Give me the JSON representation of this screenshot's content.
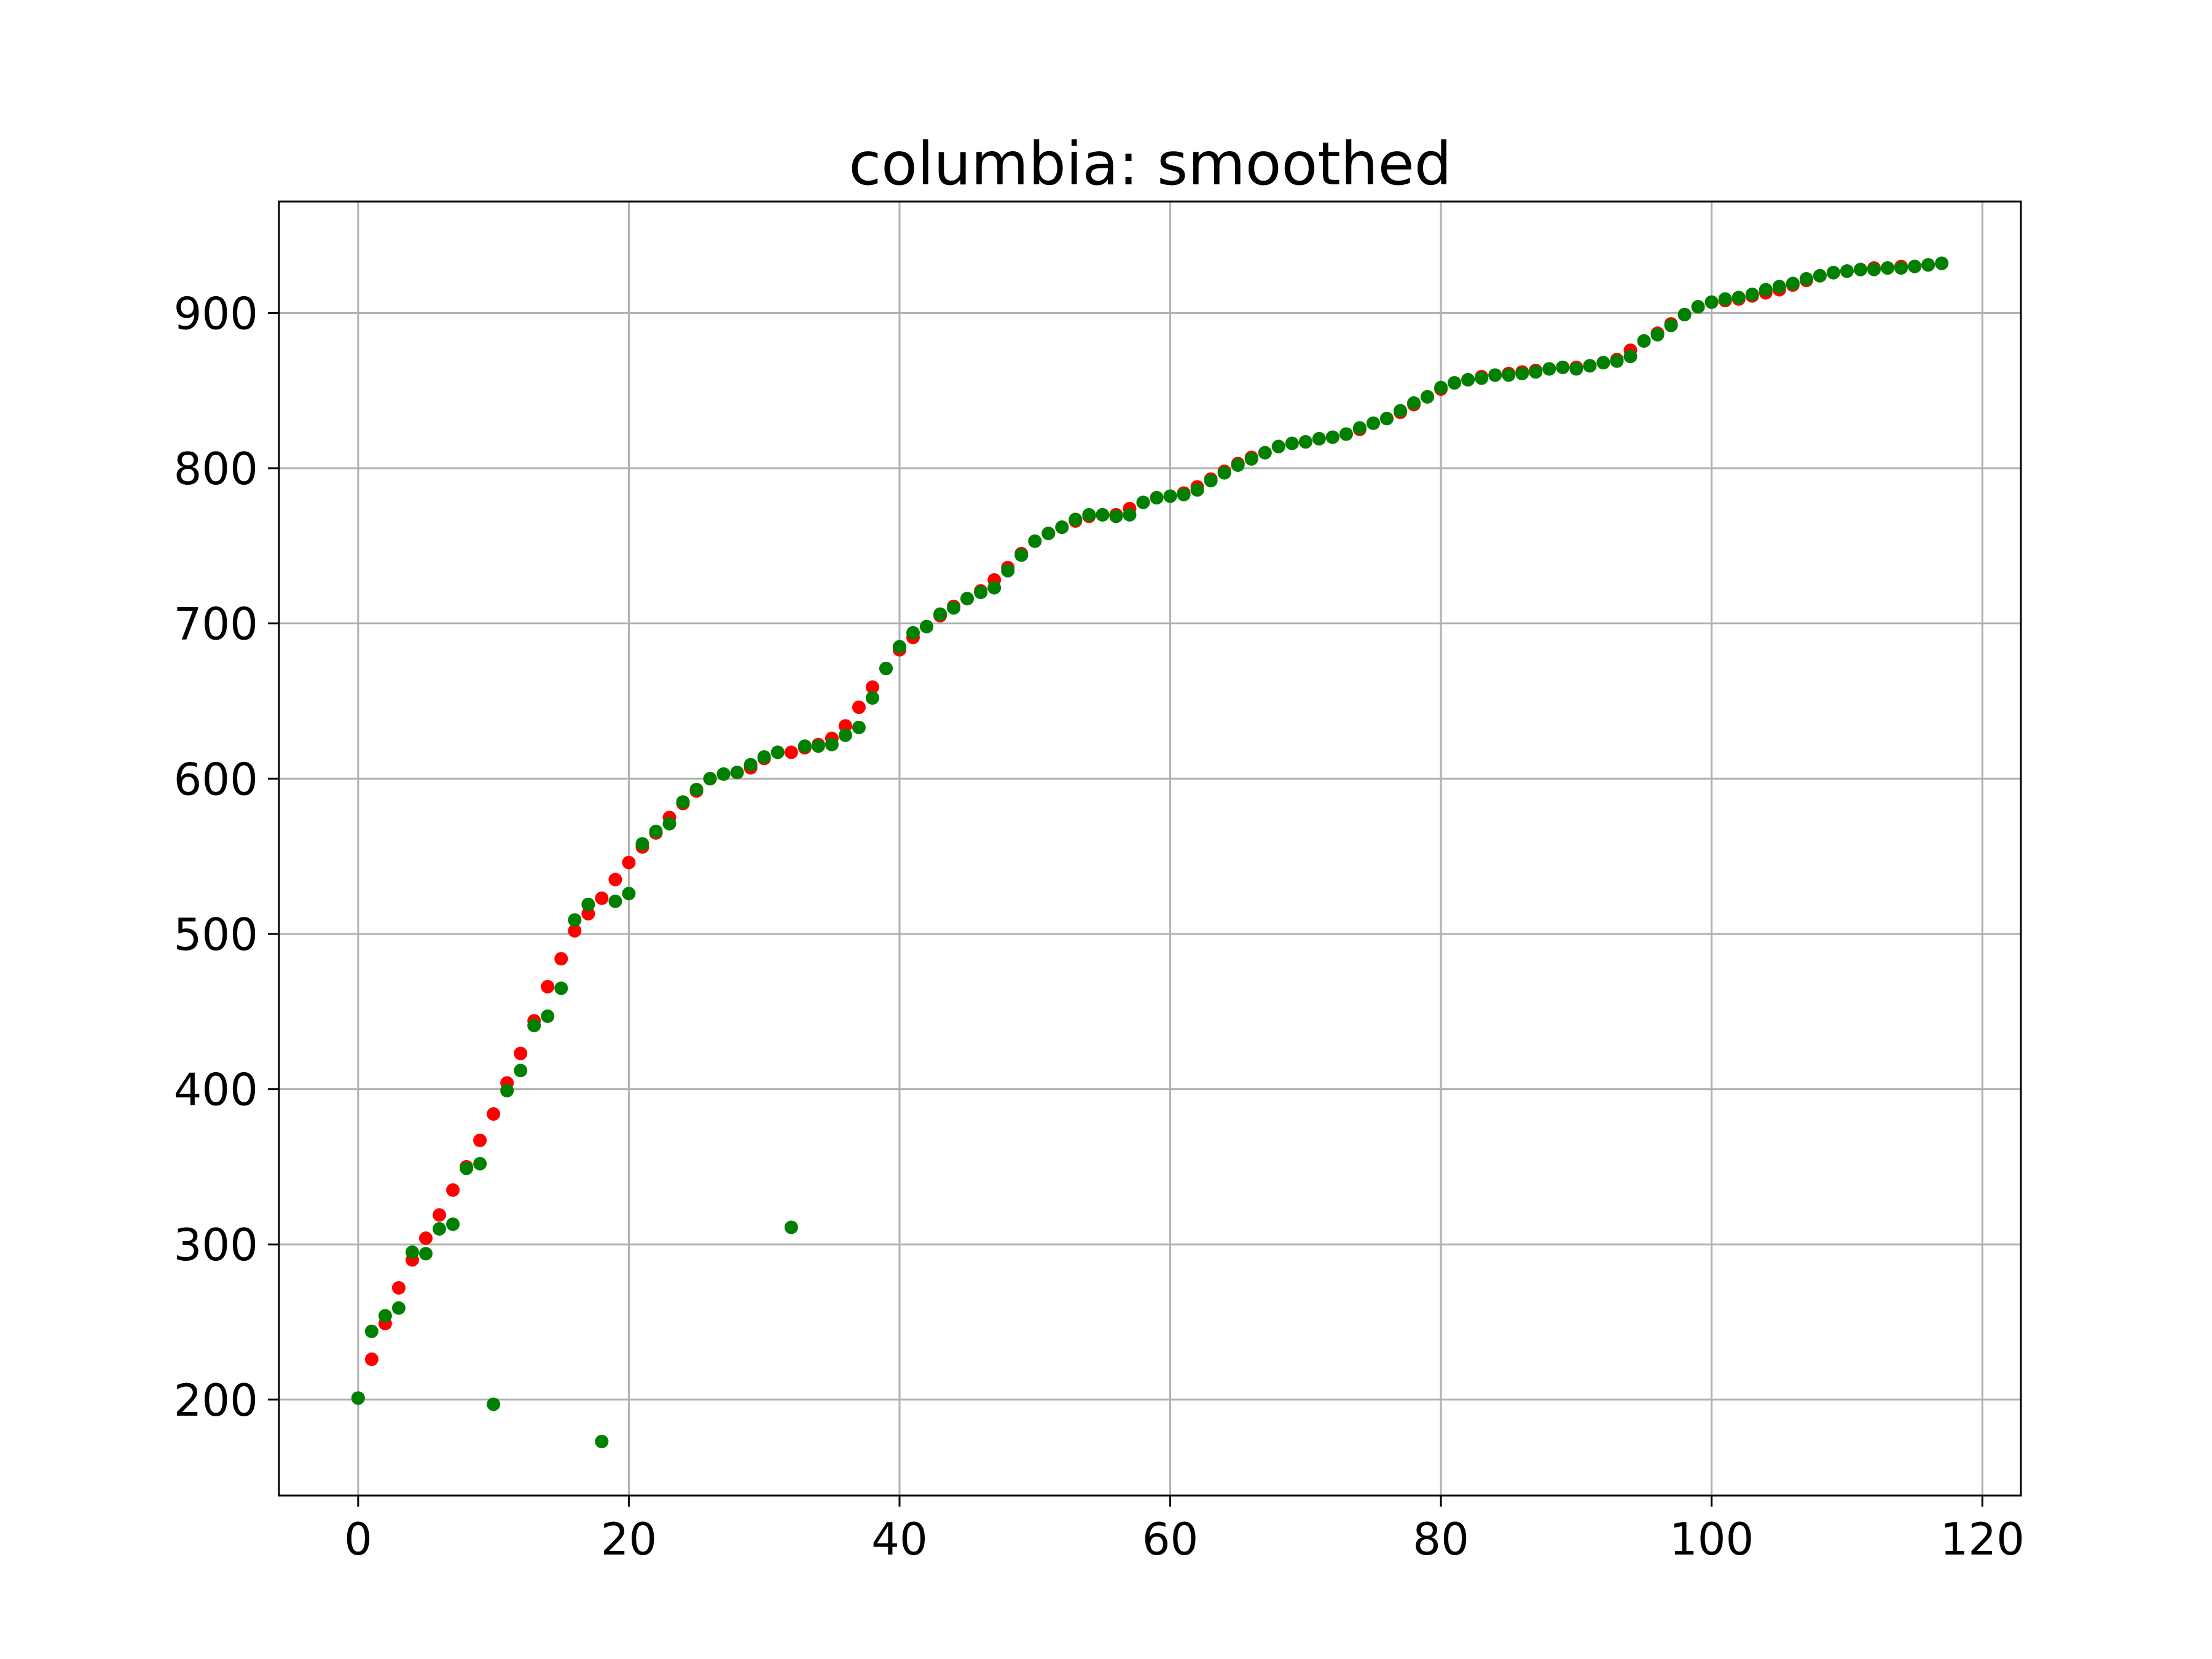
{
  "chart_data": {
    "type": "scatter",
    "title": "columbia: smoothed",
    "xlabel": "",
    "ylabel": "",
    "xlim": [
      -5.85,
      122.85
    ],
    "ylim": [
      138.2,
      971.8
    ],
    "x_ticks": [
      0,
      20,
      40,
      60,
      80,
      100,
      120
    ],
    "y_ticks": [
      200,
      300,
      400,
      500,
      600,
      700,
      800,
      900
    ],
    "grid": true,
    "legend": "none",
    "colors": {
      "series_red": "#ff0000",
      "series_green": "#008000",
      "grid": "#b0b0b0",
      "axes": "#000000"
    },
    "series": [
      {
        "color": "#ff0000",
        "x": [
          0,
          1,
          2,
          3,
          4,
          5,
          6,
          7,
          8,
          9,
          10,
          11,
          12,
          13,
          14,
          15,
          16,
          17,
          18,
          19,
          20,
          21,
          22,
          23,
          24,
          25,
          26,
          27,
          28,
          29,
          30,
          31,
          32,
          33,
          34,
          35,
          36,
          37,
          38,
          39,
          40,
          41,
          42,
          43,
          44,
          45,
          46,
          47,
          48,
          49,
          50,
          51,
          52,
          53,
          54,
          55,
          56,
          57,
          58,
          59,
          60,
          61,
          62,
          63,
          64,
          65,
          66,
          67,
          68,
          69,
          70,
          71,
          72,
          73,
          74,
          75,
          76,
          77,
          78,
          79,
          80,
          81,
          82,
          83,
          84,
          85,
          86,
          87,
          88,
          89,
          90,
          91,
          92,
          93,
          94,
          95,
          96,
          97,
          98,
          99,
          100,
          101,
          102,
          103,
          104,
          105,
          106,
          107,
          108,
          109,
          110,
          111,
          112,
          113,
          114,
          115,
          116,
          117
        ],
        "y": [
          201,
          226,
          249,
          272,
          290,
          304,
          319,
          335,
          350,
          367,
          384,
          404,
          423,
          444,
          466,
          484,
          502,
          513,
          523,
          535,
          546,
          556,
          565,
          575,
          584,
          592,
          600,
          603,
          604,
          607,
          613,
          617,
          617,
          620,
          622,
          626,
          634,
          646,
          659,
          671,
          683,
          691,
          698,
          705,
          711,
          716,
          721,
          728,
          736,
          745,
          753,
          758,
          762,
          766,
          769,
          770,
          770,
          774,
          778,
          781,
          782,
          784,
          788,
          793,
          798,
          803,
          807,
          810,
          814,
          816,
          817,
          819,
          820,
          822,
          825,
          829,
          832,
          836,
          841,
          846,
          851,
          855,
          857,
          859,
          860,
          861,
          862,
          863,
          864,
          865,
          865,
          866,
          868,
          870,
          876,
          882,
          887,
          893,
          899,
          904,
          907,
          908,
          909,
          911,
          913,
          915,
          918,
          921,
          924,
          926,
          927,
          928,
          929,
          929,
          930,
          930,
          931,
          932
        ]
      },
      {
        "color": "#008000",
        "x": [
          0,
          1,
          2,
          3,
          4,
          5,
          6,
          7,
          8,
          9,
          10,
          11,
          12,
          13,
          14,
          15,
          16,
          17,
          18,
          19,
          20,
          21,
          22,
          23,
          24,
          25,
          26,
          27,
          28,
          29,
          30,
          31,
          32,
          33,
          34,
          35,
          36,
          37,
          38,
          39,
          40,
          41,
          42,
          43,
          44,
          45,
          46,
          47,
          48,
          49,
          50,
          51,
          52,
          53,
          54,
          55,
          56,
          57,
          58,
          59,
          60,
          61,
          62,
          63,
          64,
          65,
          66,
          67,
          68,
          69,
          70,
          71,
          72,
          73,
          74,
          75,
          76,
          77,
          78,
          79,
          80,
          81,
          82,
          83,
          84,
          85,
          86,
          87,
          88,
          89,
          90,
          91,
          92,
          93,
          94,
          95,
          96,
          97,
          98,
          99,
          100,
          101,
          102,
          103,
          104,
          105,
          106,
          107,
          108,
          109,
          110,
          111,
          112,
          113,
          114,
          115,
          116,
          117
        ],
        "y": [
          201,
          244,
          254,
          259,
          295,
          294,
          310,
          313,
          349,
          352,
          197,
          399,
          412,
          441,
          447,
          465,
          509,
          519,
          173,
          521,
          526,
          558,
          566,
          571,
          585,
          593,
          600,
          603,
          604,
          609,
          614,
          617,
          311,
          621,
          621,
          622,
          628,
          633,
          652,
          671,
          685,
          694,
          698,
          706,
          710,
          716,
          720,
          723,
          734,
          744,
          753,
          758,
          762,
          767,
          770,
          770,
          769,
          770,
          778,
          781,
          782,
          783,
          786,
          792,
          797,
          802,
          806,
          810,
          814,
          816,
          817,
          819,
          820,
          822,
          826,
          829,
          832,
          837,
          842,
          846,
          852,
          855,
          857,
          858,
          860,
          860,
          861,
          862,
          864,
          865,
          864,
          866,
          868,
          869,
          872,
          882,
          886,
          892,
          899,
          904,
          907,
          909,
          910,
          912,
          915,
          917,
          919,
          922,
          924,
          926,
          927,
          928,
          928,
          929,
          929,
          930,
          931,
          932
        ]
      }
    ]
  }
}
